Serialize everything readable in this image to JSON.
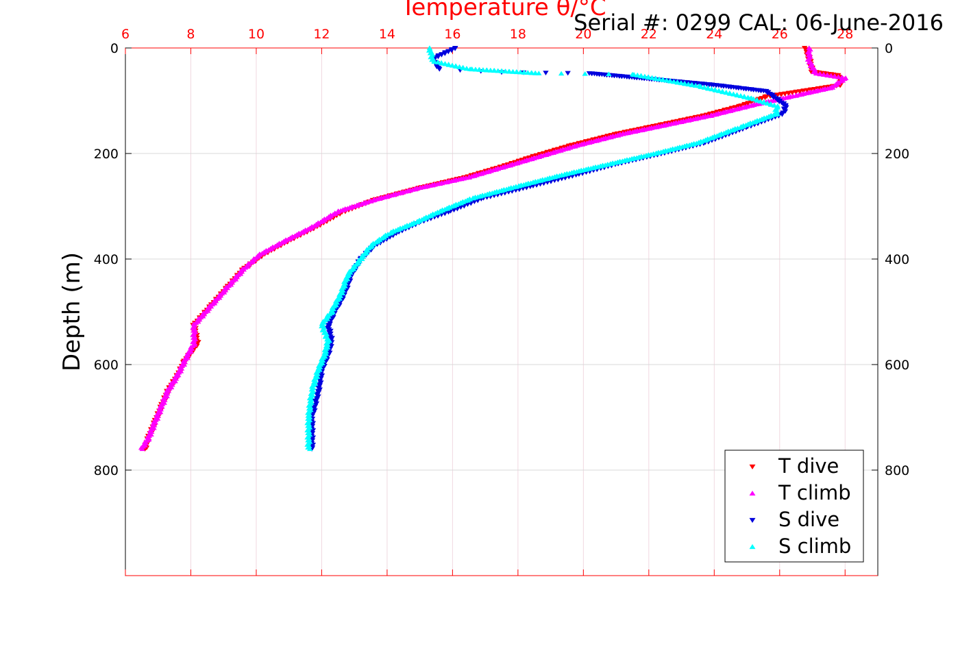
{
  "chart_data": {
    "type": "scatter",
    "title": "Temperature θ/°C",
    "subtitle": "Serial #: 0299 CAL: 06-June-2016",
    "xlabel": "Temperature θ/°C",
    "ylabel": "Depth (m)",
    "xlim": [
      6,
      29
    ],
    "ylim": [
      1000,
      0
    ],
    "x_ticks": [
      "6",
      "8",
      "10",
      "12",
      "14",
      "16",
      "18",
      "20",
      "22",
      "24",
      "26",
      "28"
    ],
    "x_tick_values": [
      6,
      8,
      10,
      12,
      14,
      16,
      18,
      20,
      22,
      24,
      26,
      28
    ],
    "y_ticks": [
      "0",
      "200",
      "400",
      "600",
      "800"
    ],
    "y_tick_values": [
      0,
      200,
      400,
      600,
      800
    ],
    "grid": true,
    "legend_position": "bottom-right",
    "colors": {
      "t_dive": "#ff0000",
      "t_climb": "#ff00ff",
      "s_dive": "#0000dd",
      "s_climb": "#00ffff",
      "temperature_axis": "#ff0000",
      "grid": "#d8d8d8"
    },
    "series": [
      {
        "name": "T dive",
        "marker": "triangle-down",
        "points": [
          [
            26.8,
            0
          ],
          [
            26.9,
            20
          ],
          [
            27.0,
            45
          ],
          [
            27.8,
            52
          ],
          [
            27.9,
            70
          ],
          [
            25.6,
            92
          ],
          [
            24.8,
            110
          ],
          [
            23.7,
            128
          ],
          [
            22.4,
            145
          ],
          [
            21.0,
            163
          ],
          [
            19.6,
            185
          ],
          [
            18.5,
            205
          ],
          [
            17.5,
            225
          ],
          [
            16.4,
            245
          ],
          [
            15.0,
            265
          ],
          [
            13.6,
            288
          ],
          [
            12.6,
            312
          ],
          [
            11.8,
            340
          ],
          [
            11.0,
            365
          ],
          [
            10.2,
            392
          ],
          [
            9.6,
            420
          ],
          [
            9.1,
            455
          ],
          [
            8.6,
            490
          ],
          [
            8.1,
            525
          ],
          [
            8.2,
            560
          ],
          [
            7.8,
            595
          ],
          [
            7.6,
            620
          ],
          [
            7.3,
            650
          ],
          [
            7.1,
            680
          ],
          [
            6.9,
            710
          ],
          [
            6.7,
            740
          ],
          [
            6.6,
            760
          ]
        ]
      },
      {
        "name": "T climb",
        "marker": "triangle-up",
        "points": [
          [
            6.5,
            760
          ],
          [
            6.7,
            740
          ],
          [
            6.9,
            710
          ],
          [
            7.1,
            680
          ],
          [
            7.3,
            650
          ],
          [
            7.6,
            620
          ],
          [
            7.8,
            595
          ],
          [
            8.1,
            560
          ],
          [
            8.1,
            525
          ],
          [
            8.6,
            490
          ],
          [
            9.1,
            455
          ],
          [
            9.6,
            420
          ],
          [
            10.1,
            392
          ],
          [
            10.9,
            365
          ],
          [
            11.7,
            340
          ],
          [
            12.5,
            310
          ],
          [
            13.6,
            288
          ],
          [
            15.0,
            265
          ],
          [
            16.5,
            245
          ],
          [
            17.6,
            225
          ],
          [
            18.7,
            205
          ],
          [
            19.8,
            185
          ],
          [
            21.2,
            163
          ],
          [
            22.6,
            145
          ],
          [
            23.9,
            128
          ],
          [
            25.2,
            108
          ],
          [
            26.5,
            90
          ],
          [
            27.6,
            75
          ],
          [
            28.0,
            57
          ],
          [
            27.1,
            48
          ],
          [
            26.9,
            25
          ],
          [
            26.9,
            0
          ]
        ]
      },
      {
        "name": "S dive",
        "marker": "triangle-down",
        "points": [
          [
            16.1,
            0
          ],
          [
            15.4,
            20
          ],
          [
            15.6,
            40
          ],
          [
            17.5,
            46
          ],
          [
            20.2,
            48
          ],
          [
            24.0,
            70
          ],
          [
            25.6,
            82
          ],
          [
            26.2,
            110
          ],
          [
            26.1,
            125
          ],
          [
            25.0,
            150
          ],
          [
            23.7,
            180
          ],
          [
            22.4,
            200
          ],
          [
            21.0,
            220
          ],
          [
            19.8,
            240
          ],
          [
            18.4,
            262
          ],
          [
            16.9,
            285
          ],
          [
            15.9,
            310
          ],
          [
            15.0,
            330
          ],
          [
            14.3,
            350
          ],
          [
            13.6,
            375
          ],
          [
            13.2,
            400
          ],
          [
            12.9,
            430
          ],
          [
            12.7,
            465
          ],
          [
            12.4,
            500
          ],
          [
            12.2,
            525
          ],
          [
            12.3,
            555
          ],
          [
            12.2,
            580
          ],
          [
            12.0,
            610
          ],
          [
            11.9,
            650
          ],
          [
            11.7,
            700
          ],
          [
            11.7,
            760
          ]
        ]
      },
      {
        "name": "S climb",
        "marker": "triangle-up",
        "points": [
          [
            11.6,
            760
          ],
          [
            11.6,
            700
          ],
          [
            11.7,
            650
          ],
          [
            11.9,
            610
          ],
          [
            12.1,
            580
          ],
          [
            12.2,
            555
          ],
          [
            12.0,
            525
          ],
          [
            12.3,
            500
          ],
          [
            12.6,
            465
          ],
          [
            12.8,
            430
          ],
          [
            13.2,
            400
          ],
          [
            13.5,
            375
          ],
          [
            14.1,
            350
          ],
          [
            14.9,
            330
          ],
          [
            15.6,
            310
          ],
          [
            16.6,
            285
          ],
          [
            18.0,
            262
          ],
          [
            19.4,
            240
          ],
          [
            20.8,
            220
          ],
          [
            22.2,
            200
          ],
          [
            23.5,
            180
          ],
          [
            24.8,
            150
          ],
          [
            25.9,
            125
          ],
          [
            25.9,
            110
          ],
          [
            25.1,
            95
          ],
          [
            23.5,
            72
          ],
          [
            21.5,
            50
          ],
          [
            18.6,
            48
          ],
          [
            16.5,
            40
          ],
          [
            15.4,
            25
          ],
          [
            15.3,
            0
          ]
        ]
      }
    ]
  }
}
